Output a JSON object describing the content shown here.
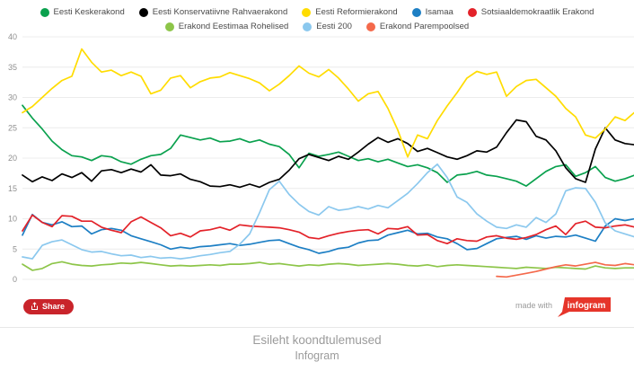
{
  "legend": {
    "items": [
      {
        "label": "Eesti Keskerakond",
        "color": "#0aa14e"
      },
      {
        "label": "Eesti Konservatiivne Rahvaerakond",
        "color": "#000000"
      },
      {
        "label": "Eesti Reformierakond",
        "color": "#ffdc00"
      },
      {
        "label": "Isamaa",
        "color": "#1d7fc4"
      },
      {
        "label": "Sotsiaaldemokraatlik Erakond",
        "color": "#e32229"
      },
      {
        "label": "Erakond Eestimaa Rohelised",
        "color": "#8dc549"
      },
      {
        "label": "Eesti 200",
        "color": "#8bc8ee"
      },
      {
        "label": "Erakond Parempoolsed",
        "color": "#f4694b"
      }
    ]
  },
  "chart_data": {
    "type": "line",
    "title": "Esileht koondtulemused",
    "xlabel": "",
    "ylabel": "",
    "ylim": [
      0,
      40
    ],
    "yticks": [
      0,
      5,
      10,
      15,
      20,
      25,
      30,
      35,
      40
    ],
    "grid": true,
    "x_tick_labels_visible": false,
    "legend_position": "top",
    "series": [
      {
        "name": "Eesti Keskerakond",
        "color": "#0aa14e",
        "values": [
          28.7,
          26.6,
          24.8,
          22.8,
          21.4,
          20.4,
          20.2,
          19.6,
          20.4,
          20.2,
          19.4,
          19.0,
          19.8,
          20.4,
          20.6,
          21.6,
          23.8,
          23.4,
          23.0,
          23.3,
          22.7,
          22.8,
          23.2,
          22.6,
          23.0,
          22.3,
          21.9,
          20.6,
          18.4,
          20.8,
          20.3,
          20.6,
          21.0,
          20.3,
          19.6,
          19.9,
          19.4,
          19.8,
          19.2,
          18.6,
          18.9,
          18.4,
          17.6,
          16.0,
          17.2,
          17.4,
          17.8,
          17.2,
          17.0,
          16.6,
          16.2,
          15.4,
          16.6,
          17.8,
          18.6,
          18.9,
          17.0,
          17.6,
          18.6,
          16.8,
          16.2,
          16.6,
          17.2
        ]
      },
      {
        "name": "Eesti Konservatiivne Rahvaerakond",
        "color": "#000000",
        "values": [
          17.2,
          16.1,
          16.9,
          16.3,
          17.4,
          16.8,
          17.6,
          16.2,
          17.9,
          18.1,
          17.6,
          18.2,
          17.7,
          18.9,
          17.2,
          17.1,
          17.4,
          16.5,
          16.1,
          15.4,
          15.3,
          15.6,
          15.2,
          15.7,
          15.2,
          16.0,
          16.5,
          18.0,
          19.9,
          20.6,
          20.1,
          19.6,
          20.3,
          19.8,
          21.0,
          22.3,
          23.4,
          22.6,
          23.2,
          22.4,
          21.1,
          21.6,
          20.9,
          20.2,
          19.8,
          20.4,
          21.2,
          21.0,
          21.8,
          24.2,
          26.3,
          26.0,
          23.6,
          23.0,
          21.2,
          18.4,
          16.6,
          16.0,
          21.5,
          25.0,
          23.0,
          22.4,
          22.2
        ]
      },
      {
        "name": "Eesti Reformierakond",
        "color": "#ffdc00",
        "values": [
          27.5,
          28.5,
          30.0,
          31.5,
          32.8,
          33.5,
          38.0,
          35.8,
          34.2,
          34.5,
          33.6,
          34.2,
          33.5,
          30.6,
          31.2,
          33.2,
          33.6,
          31.6,
          32.6,
          33.2,
          33.4,
          34.1,
          33.6,
          33.1,
          32.4,
          31.1,
          32.2,
          33.6,
          35.2,
          34.0,
          33.4,
          34.6,
          33.2,
          31.4,
          29.4,
          30.6,
          31.0,
          28.2,
          24.6,
          20.2,
          23.8,
          23.2,
          26.2,
          28.6,
          30.8,
          33.2,
          34.3,
          33.8,
          34.2,
          30.2,
          31.8,
          32.8,
          33.0,
          31.6,
          30.2,
          28.2,
          26.8,
          23.8,
          23.3,
          24.8,
          26.8,
          26.2,
          27.6
        ]
      },
      {
        "name": "Isamaa",
        "color": "#1d7fc4",
        "values": [
          7.3,
          10.7,
          9.4,
          9.0,
          9.5,
          8.7,
          8.8,
          7.5,
          8.2,
          8.4,
          8.1,
          7.2,
          6.7,
          6.2,
          5.7,
          5.0,
          5.3,
          5.1,
          5.4,
          5.5,
          5.7,
          5.9,
          5.6,
          5.8,
          6.1,
          6.4,
          6.5,
          5.9,
          5.3,
          4.9,
          4.3,
          4.6,
          5.1,
          5.3,
          6.0,
          6.4,
          6.5,
          7.3,
          7.7,
          8.1,
          7.5,
          7.6,
          7.0,
          6.7,
          5.9,
          4.9,
          5.1,
          5.9,
          6.7,
          6.9,
          7.1,
          6.6,
          7.2,
          6.8,
          7.1,
          7.0,
          7.3,
          6.8,
          6.3,
          8.8,
          10.0,
          9.7,
          10.0
        ]
      },
      {
        "name": "Sotsiaaldemokraatlik Erakond",
        "color": "#e32229",
        "values": [
          8.0,
          10.6,
          9.4,
          8.7,
          10.5,
          10.4,
          9.6,
          9.6,
          8.6,
          8.1,
          7.7,
          9.5,
          10.3,
          9.4,
          8.5,
          7.2,
          7.6,
          7.0,
          8.0,
          8.2,
          8.6,
          8.1,
          9.0,
          8.8,
          8.7,
          8.6,
          8.5,
          8.2,
          7.8,
          6.9,
          6.7,
          7.2,
          7.6,
          7.9,
          8.1,
          8.2,
          7.5,
          8.4,
          8.3,
          8.7,
          7.3,
          7.4,
          6.4,
          5.9,
          6.7,
          6.4,
          6.3,
          7.0,
          7.2,
          6.8,
          6.6,
          6.9,
          7.4,
          8.2,
          8.8,
          7.4,
          9.2,
          9.6,
          8.6,
          8.5,
          8.8,
          9.0,
          8.6
        ]
      },
      {
        "name": "Erakond Eestimaa Rohelised",
        "color": "#8dc549",
        "values": [
          2.5,
          1.5,
          1.8,
          2.6,
          2.9,
          2.5,
          2.3,
          2.2,
          2.4,
          2.5,
          2.7,
          2.6,
          2.8,
          2.6,
          2.4,
          2.2,
          2.3,
          2.2,
          2.3,
          2.4,
          2.3,
          2.5,
          2.5,
          2.6,
          2.8,
          2.5,
          2.6,
          2.4,
          2.2,
          2.4,
          2.3,
          2.5,
          2.6,
          2.5,
          2.3,
          2.4,
          2.5,
          2.6,
          2.5,
          2.3,
          2.2,
          2.4,
          2.1,
          2.3,
          2.4,
          2.3,
          2.2,
          2.1,
          2.0,
          1.9,
          1.8,
          2.0,
          1.9,
          1.8,
          2.0,
          1.9,
          1.8,
          1.7,
          2.2,
          1.9,
          1.8,
          1.9,
          1.9
        ]
      },
      {
        "name": "Eesti 200",
        "color": "#8bc8ee",
        "values": [
          3.7,
          3.4,
          5.6,
          6.2,
          6.5,
          5.7,
          4.9,
          4.5,
          4.6,
          4.2,
          3.9,
          4.0,
          3.6,
          3.8,
          3.5,
          3.6,
          3.4,
          3.6,
          3.9,
          4.1,
          4.4,
          4.6,
          5.8,
          7.5,
          11.0,
          14.8,
          16.2,
          14.0,
          12.4,
          11.2,
          10.6,
          12.0,
          11.4,
          11.6,
          12.0,
          11.6,
          12.2,
          11.8,
          13.0,
          14.2,
          15.8,
          17.6,
          19.0,
          16.8,
          13.6,
          12.7,
          10.8,
          9.6,
          8.6,
          8.4,
          9.0,
          8.6,
          10.2,
          9.4,
          10.8,
          14.6,
          15.1,
          15.0,
          12.7,
          9.3,
          8.0,
          7.5,
          7.0
        ]
      },
      {
        "name": "Erakond Parempoolsed",
        "color": "#f4694b",
        "values": [
          null,
          null,
          null,
          null,
          null,
          null,
          null,
          null,
          null,
          null,
          null,
          null,
          null,
          null,
          null,
          null,
          null,
          null,
          null,
          null,
          null,
          null,
          null,
          null,
          null,
          null,
          null,
          null,
          null,
          null,
          null,
          null,
          null,
          null,
          null,
          null,
          null,
          null,
          null,
          null,
          null,
          null,
          null,
          null,
          null,
          null,
          null,
          null,
          0.5,
          0.4,
          0.7,
          1.0,
          1.3,
          1.7,
          2.1,
          2.4,
          2.2,
          2.5,
          2.8,
          2.4,
          2.3,
          2.6,
          2.4
        ]
      }
    ]
  },
  "toolbar": {
    "share_label": "Share"
  },
  "branding": {
    "made_with": "made with",
    "logo_text": "infogram",
    "logo_color": "#e6352a"
  },
  "footer": {
    "title": "Esileht koondtulemused",
    "subtitle": "Infogram"
  },
  "colors": {
    "grid": "#ececec",
    "axis_label": "#8f8f8f",
    "share_button": "#c9242b",
    "footer_text": "#9b9b9b"
  }
}
